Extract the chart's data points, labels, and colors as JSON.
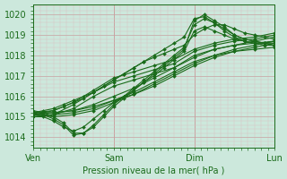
{
  "title": "",
  "xlabel": "Pression niveau de la mer( hPa )",
  "ylabel": "",
  "bg_color": "#cce8dc",
  "plot_bg_color": "#cce8dc",
  "grid_color_major": "#c8a0a0",
  "grid_color_minor": "#ddc0c0",
  "line_color": "#1a6b1a",
  "marker": "D",
  "markersize": 2.0,
  "linewidth": 0.8,
  "ylim": [
    1013.5,
    1020.5
  ],
  "xlim": [
    0,
    72
  ],
  "xticks": [
    0,
    24,
    48,
    72
  ],
  "xticklabels": [
    "Ven",
    "Sam",
    "Dim",
    "Lun"
  ],
  "yticks": [
    1014,
    1015,
    1016,
    1017,
    1018,
    1019,
    1020
  ],
  "series": [
    {
      "x": [
        0,
        6,
        12,
        18,
        24,
        30,
        36,
        42,
        48,
        54,
        60,
        66,
        72
      ],
      "y": [
        1015.1,
        1015.2,
        1015.3,
        1015.5,
        1015.8,
        1016.1,
        1016.5,
        1017.0,
        1017.5,
        1017.9,
        1018.2,
        1018.4,
        1018.6
      ]
    },
    {
      "x": [
        0,
        6,
        12,
        18,
        24,
        30,
        36,
        42,
        48,
        54,
        60,
        66,
        72
      ],
      "y": [
        1015.0,
        1015.1,
        1015.2,
        1015.4,
        1015.8,
        1016.2,
        1016.7,
        1017.2,
        1017.7,
        1018.0,
        1018.2,
        1018.3,
        1018.4
      ]
    },
    {
      "x": [
        0,
        6,
        12,
        18,
        24,
        30,
        36,
        42,
        48,
        54,
        60,
        66,
        72
      ],
      "y": [
        1015.2,
        1015.2,
        1015.3,
        1015.6,
        1016.0,
        1016.4,
        1016.9,
        1017.4,
        1017.9,
        1018.3,
        1018.5,
        1018.6,
        1018.7
      ]
    },
    {
      "x": [
        0,
        6,
        12,
        18,
        24,
        30,
        36,
        42,
        48,
        54,
        60,
        66,
        72
      ],
      "y": [
        1015.1,
        1015.0,
        1015.1,
        1015.3,
        1015.7,
        1016.1,
        1016.6,
        1017.1,
        1017.6,
        1018.0,
        1018.3,
        1018.5,
        1018.7
      ]
    },
    {
      "x": [
        0,
        3,
        6,
        9,
        12,
        15,
        18,
        21,
        24,
        27,
        30,
        33,
        36,
        39,
        42,
        45,
        48,
        51,
        54,
        57,
        60,
        63,
        66,
        69,
        72
      ],
      "y": [
        1015.2,
        1015.3,
        1015.4,
        1015.6,
        1015.8,
        1016.0,
        1016.2,
        1016.5,
        1016.8,
        1017.1,
        1017.4,
        1017.7,
        1017.9,
        1018.1,
        1018.3,
        1018.5,
        1019.0,
        1019.3,
        1019.5,
        1019.5,
        1019.3,
        1019.1,
        1019.0,
        1018.9,
        1018.8
      ]
    },
    {
      "x": [
        0,
        3,
        6,
        9,
        12,
        15,
        18,
        21,
        24,
        27,
        30,
        33,
        36,
        39,
        42,
        45,
        48,
        51,
        54,
        57,
        60,
        63,
        66,
        69,
        72
      ],
      "y": [
        1015.1,
        1015.2,
        1015.3,
        1015.5,
        1015.7,
        1015.9,
        1016.2,
        1016.5,
        1016.8,
        1017.1,
        1017.4,
        1017.7,
        1018.0,
        1018.3,
        1018.6,
        1018.9,
        1019.8,
        1019.9,
        1019.6,
        1019.2,
        1018.9,
        1018.7,
        1018.6,
        1018.6,
        1018.7
      ]
    },
    {
      "x": [
        0,
        3,
        6,
        9,
        12,
        15,
        18,
        21,
        24,
        27,
        30,
        33,
        36,
        39,
        42,
        45,
        48,
        51,
        54,
        57,
        60,
        63,
        66,
        69,
        72
      ],
      "y": [
        1015.0,
        1015.0,
        1014.8,
        1014.5,
        1014.3,
        1014.5,
        1014.9,
        1015.3,
        1015.7,
        1016.0,
        1016.3,
        1016.7,
        1017.0,
        1017.4,
        1017.8,
        1018.2,
        1019.2,
        1019.4,
        1019.2,
        1019.0,
        1018.8,
        1018.7,
        1018.6,
        1018.5,
        1018.5
      ]
    },
    {
      "x": [
        0,
        3,
        6,
        9,
        12,
        15,
        18,
        21,
        24,
        27,
        30,
        33,
        36,
        39,
        42,
        45,
        48,
        51,
        54,
        57,
        60,
        63,
        66,
        69,
        72
      ],
      "y": [
        1015.3,
        1015.2,
        1015.0,
        1014.7,
        1014.2,
        1014.2,
        1014.5,
        1015.0,
        1015.5,
        1015.9,
        1016.3,
        1016.7,
        1017.1,
        1017.5,
        1017.9,
        1018.3,
        1019.7,
        1020.0,
        1019.7,
        1019.4,
        1019.0,
        1018.8,
        1018.7,
        1018.6,
        1018.6
      ]
    },
    {
      "x": [
        0,
        3,
        6,
        9,
        12,
        15,
        18,
        21,
        24,
        27,
        30,
        33,
        36,
        39,
        42,
        45,
        48,
        51,
        54,
        57,
        60,
        63,
        66,
        69,
        72
      ],
      "y": [
        1015.2,
        1015.1,
        1014.9,
        1014.6,
        1014.1,
        1014.2,
        1014.6,
        1015.1,
        1015.6,
        1016.0,
        1016.4,
        1016.8,
        1017.2,
        1017.6,
        1018.0,
        1018.4,
        1019.5,
        1019.8,
        1019.6,
        1019.3,
        1019.0,
        1018.8,
        1018.7,
        1018.6,
        1018.5
      ]
    },
    {
      "x": [
        0,
        6,
        12,
        18,
        24,
        30,
        36,
        42,
        48,
        54,
        60,
        66,
        72
      ],
      "y": [
        1015.1,
        1015.1,
        1015.4,
        1016.0,
        1016.5,
        1016.8,
        1017.1,
        1017.4,
        1018.0,
        1018.3,
        1018.5,
        1018.7,
        1018.9
      ]
    },
    {
      "x": [
        0,
        6,
        12,
        18,
        24,
        30,
        36,
        42,
        48,
        54,
        60,
        66,
        72
      ],
      "y": [
        1015.0,
        1015.1,
        1015.6,
        1016.2,
        1016.7,
        1017.0,
        1017.3,
        1017.6,
        1018.2,
        1018.5,
        1018.7,
        1018.8,
        1019.0
      ]
    },
    {
      "x": [
        0,
        6,
        12,
        18,
        24,
        30,
        36,
        42,
        48,
        54,
        60,
        66,
        72
      ],
      "y": [
        1015.2,
        1015.3,
        1015.7,
        1016.3,
        1016.9,
        1017.2,
        1017.5,
        1017.8,
        1018.3,
        1018.6,
        1018.8,
        1018.9,
        1019.1
      ]
    }
  ]
}
